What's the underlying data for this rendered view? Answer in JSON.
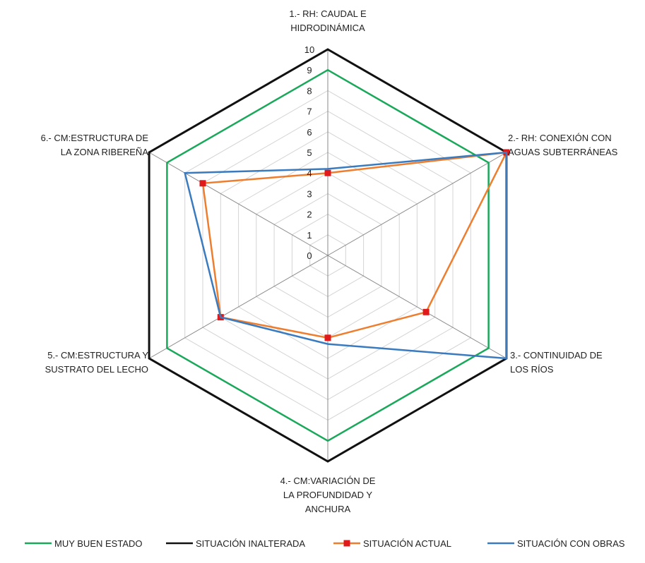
{
  "chart_data": {
    "type": "radar",
    "axes": [
      [
        "1.- RH: CAUDAL E",
        "HIDRODINÁMICA"
      ],
      [
        "2.- RH: CONEXIÓN CON",
        "AGUAS SUBTERRÁNEAS"
      ],
      [
        "3.- CONTINUIDAD DE",
        "LOS RÍOS"
      ],
      [
        "4.- CM:VARIACIÓN DE",
        "LA PROFUNDIDAD Y",
        "ANCHURA"
      ],
      [
        "5.- CM:ESTRUCTURA Y",
        "SUSTRATO DEL LECHO"
      ],
      [
        "6.- CM:ESTRUCTURA DE",
        "LA ZONA RIBEREÑA"
      ]
    ],
    "rlim": [
      0,
      10
    ],
    "ticks": [
      "0",
      "1",
      "2",
      "3",
      "4",
      "5",
      "6",
      "7",
      "8",
      "9",
      "10"
    ],
    "grid": true,
    "legend_position": "bottom",
    "series": [
      {
        "name": "MUY BUEN ESTADO",
        "color": "#1aa85a",
        "marker": "none",
        "values": [
          9,
          9,
          9,
          9,
          9,
          9
        ]
      },
      {
        "name": "SITUACIÓN INALTERADA",
        "color": "#111111",
        "marker": "none",
        "values": [
          10,
          10,
          10,
          10,
          10,
          10
        ]
      },
      {
        "name": "SITUACIÓN ACTUAL",
        "color": "#ee7d2e",
        "marker": "square",
        "marker_color": "#e0191a",
        "values": [
          4,
          10,
          5.5,
          4,
          6,
          7
        ]
      },
      {
        "name": "SITUACIÓN CON OBRAS",
        "color": "#3a7bbf",
        "marker": "none",
        "values": [
          4.2,
          10,
          10,
          4.3,
          6,
          8
        ]
      }
    ]
  }
}
